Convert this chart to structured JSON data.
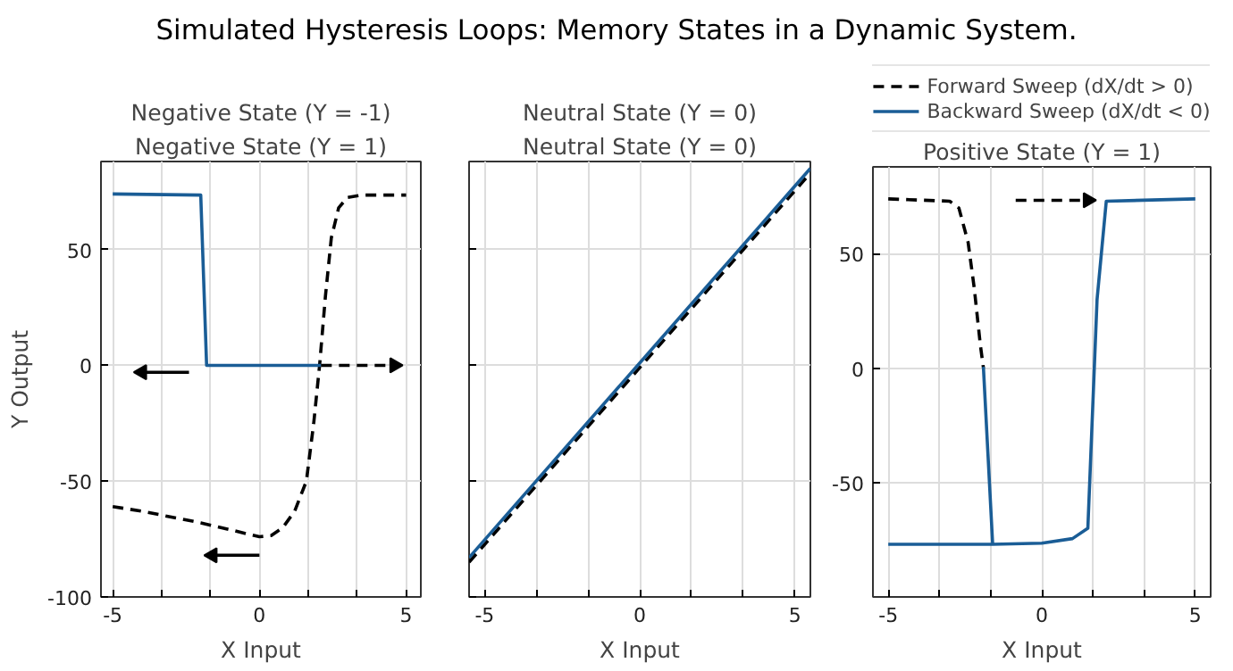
{
  "chart_data": [
    {
      "type": "line",
      "annotations": [
        "Simulated Hysteresis Loops: Memory States in a Dynamic System."
      ],
      "title": "Negative State (Y = -1)",
      "subtitle": "Negative State (Y = 1)",
      "xlabel": "X Input",
      "ylabel": "Y Output",
      "xlim": [
        -5.4,
        5.5
      ],
      "ylim": [
        -100,
        88
      ],
      "xticks": [
        -5,
        {
          "value": -3.333,
          "label": null
        },
        {
          "value": -1.667,
          "label": null
        },
        0,
        {
          "value": 1.667,
          "label": null
        },
        {
          "value": 3.333,
          "label": null
        },
        5
      ],
      "yticks": [
        -100,
        -50,
        0,
        50
      ],
      "grid": true,
      "line_style": "solid",
      "series": [
        {
          "color": "#000000",
          "line_style": "dashed",
          "x": [
            -5,
            -4,
            -3,
            -2,
            -1,
            0,
            0.4,
            0.8,
            1.2,
            1.6,
            1.85,
            2.05,
            2.25,
            2.45,
            2.7,
            3.0,
            3.5,
            5
          ],
          "values": [
            -61,
            -63,
            -65.5,
            -68,
            -71,
            -74,
            -73.5,
            -70,
            -63,
            -50,
            -25,
            0,
            30,
            55,
            68,
            72.5,
            73.5,
            73.5
          ]
        },
        {
          "color": "#1a5d96",
          "x": [
            -5,
            -2.0,
            -1.8,
            2.1
          ],
          "values": [
            74,
            73.5,
            0,
            0
          ]
        },
        {
          "marker": "triangle",
          "color": "#000000",
          "x": [
            -2.4,
            -4.0
          ],
          "values": [
            -3,
            -3
          ]
        },
        {
          "marker": "triangle",
          "color": "#000000",
          "x": [
            0,
            -1.6
          ],
          "values": [
            -82,
            -82
          ]
        },
        {
          "marker": "triangle",
          "color": "#000000",
          "line_style": "dashed",
          "x": [
            2.1,
            4.6
          ],
          "values": [
            0,
            0
          ]
        }
      ]
    },
    {
      "type": "line",
      "title": "Neutral State (Y = 0)",
      "subtitle": "Neutral State (Y = 0)",
      "xlabel": "X Input",
      "xlim": [
        -5.5,
        5.5
      ],
      "ylim": [
        -100,
        88
      ],
      "xticks": [
        -5,
        {
          "value": -3.333,
          "label": null
        },
        {
          "value": -1.667,
          "label": null
        },
        0,
        {
          "value": 1.667,
          "label": null
        },
        {
          "value": 3.333,
          "label": null
        },
        5
      ],
      "yticks": [
        -100,
        -50,
        0,
        50
      ],
      "tick_labels": "x",
      "grid": true,
      "line_style": "solid",
      "series": [
        {
          "color": "#000000",
          "line_style": "dashed",
          "x": [
            -5.5,
            5.5
          ],
          "values": [
            -85,
            83
          ]
        },
        {
          "color": "#1a5d96",
          "x": [
            -5.5,
            5.5
          ],
          "values": [
            -83,
            85
          ]
        }
      ]
    },
    {
      "type": "line",
      "title": "Positive State (Y = 1)",
      "xlabel": "X Input",
      "xlim": [
        -5.5,
        5.5
      ],
      "ylim": [
        -100,
        88
      ],
      "xticks": [
        -5,
        {
          "value": -3.333,
          "label": null
        },
        {
          "value": -1.667,
          "label": null
        },
        0,
        {
          "value": 1.667,
          "label": null
        },
        {
          "value": 3.333,
          "label": null
        },
        5
      ],
      "yticks": [
        -50,
        0,
        50
      ],
      "grid": true,
      "legend": "top",
      "line_style": "solid",
      "series": [
        {
          "name": "Forward Sweep (dX/dt > 0)",
          "color": "#000000",
          "line_style": "dashed",
          "x": [
            -5,
            -3,
            -2.7,
            -2.4,
            -2.2,
            -2.0,
            -1.9
          ],
          "values": [
            74,
            73,
            70,
            55,
            35,
            10,
            0
          ]
        },
        {
          "name": "Backward Sweep (dX/dt < 0)",
          "color": "#1a5d96",
          "x": [
            -5,
            -1.6,
            -1.9,
            -1.6,
            0,
            1.0,
            1.5,
            1.8,
            2.1,
            5
          ],
          "values": [
            -77,
            -77,
            0,
            -77,
            -76.5,
            -74.5,
            -70,
            30,
            73,
            74
          ]
        },
        {
          "marker": "triangle",
          "color": "#000000",
          "line_style": "dashed",
          "x": [
            -0.85,
            1.5
          ],
          "values": [
            73.4,
            73.4
          ]
        }
      ]
    }
  ]
}
